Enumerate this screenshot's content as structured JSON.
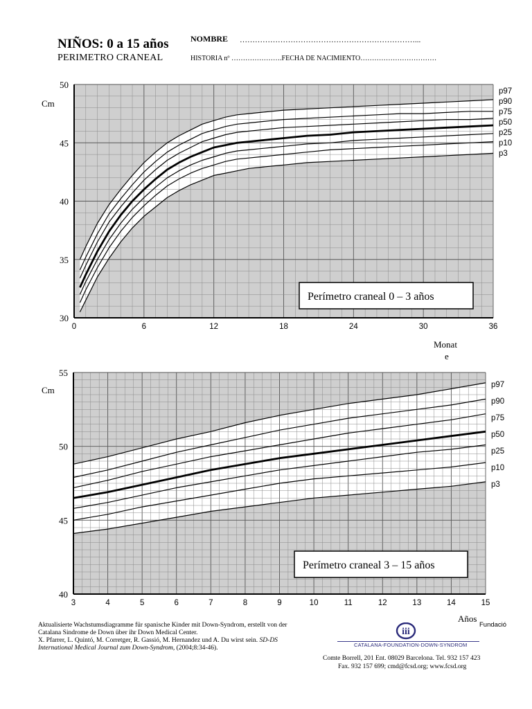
{
  "header": {
    "title": "NIÑOS: 0 a 15 años",
    "subtitle": "PERIMETRO CRANEAL",
    "nombre_label": "NOMBRE",
    "nombre_dots": "……………………………………………………………...",
    "historia_line": "HISTORIA nº ………………….FECHA DE NACIMIENTO……………………………"
  },
  "chart_data": [
    {
      "type": "line",
      "title": "Perímetro craneal  0 – 3 años",
      "ylabel": "Cm",
      "xlabel": "Monat\ne",
      "xlim": [
        0,
        36
      ],
      "ylim": [
        30,
        50
      ],
      "x_ticks": [
        0,
        6,
        12,
        18,
        24,
        30,
        36
      ],
      "y_ticks": [
        30,
        35,
        40,
        45,
        50
      ],
      "grid": true,
      "background": "#cfcfcf",
      "label_box": "Perímetro craneal  0 – 3 años",
      "x": [
        0.5,
        1,
        2,
        3,
        4,
        5,
        6,
        7,
        8,
        9,
        10,
        11,
        12,
        13,
        14,
        15,
        16,
        17,
        18,
        20,
        22,
        24,
        26,
        28,
        30,
        32,
        34,
        36
      ],
      "series": [
        {
          "name": "p97",
          "values": [
            35.0,
            36.1,
            38.1,
            39.7,
            41.0,
            42.2,
            43.3,
            44.2,
            45.0,
            45.6,
            46.1,
            46.6,
            46.9,
            47.2,
            47.4,
            47.5,
            47.6,
            47.7,
            47.8,
            47.9,
            48.0,
            48.1,
            48.2,
            48.3,
            48.4,
            48.5,
            48.6,
            48.7
          ]
        },
        {
          "name": "p90",
          "values": [
            34.1,
            35.2,
            37.2,
            38.9,
            40.2,
            41.4,
            42.5,
            43.4,
            44.2,
            44.8,
            45.3,
            45.8,
            46.1,
            46.4,
            46.6,
            46.7,
            46.8,
            46.9,
            47.0,
            47.1,
            47.2,
            47.3,
            47.4,
            47.5,
            47.5,
            47.6,
            47.7,
            47.7
          ]
        },
        {
          "name": "p75",
          "values": [
            33.4,
            34.5,
            36.5,
            38.2,
            39.5,
            40.7,
            41.8,
            42.7,
            43.5,
            44.1,
            44.6,
            45.1,
            45.4,
            45.7,
            45.9,
            46.0,
            46.1,
            46.2,
            46.3,
            46.4,
            46.5,
            46.6,
            46.7,
            46.8,
            46.9,
            47.0,
            47.0,
            47.1
          ]
        },
        {
          "name": "p50",
          "values": [
            32.6,
            33.7,
            35.7,
            37.4,
            38.8,
            40.0,
            41.0,
            41.9,
            42.7,
            43.3,
            43.8,
            44.2,
            44.6,
            44.8,
            45.0,
            45.1,
            45.2,
            45.3,
            45.4,
            45.6,
            45.7,
            45.9,
            46.0,
            46.1,
            46.2,
            46.3,
            46.4,
            46.5
          ]
        },
        {
          "name": "p25",
          "values": [
            32.0,
            33.1,
            35.0,
            36.7,
            38.1,
            39.3,
            40.3,
            41.2,
            42.0,
            42.6,
            43.1,
            43.5,
            43.8,
            44.1,
            44.3,
            44.4,
            44.5,
            44.6,
            44.7,
            44.9,
            45.0,
            45.2,
            45.3,
            45.4,
            45.5,
            45.6,
            45.7,
            45.8
          ]
        },
        {
          "name": "p10",
          "values": [
            31.3,
            32.4,
            34.3,
            36.0,
            37.4,
            38.6,
            39.6,
            40.5,
            41.3,
            41.9,
            42.4,
            42.8,
            43.1,
            43.4,
            43.6,
            43.7,
            43.8,
            43.9,
            44.0,
            44.2,
            44.4,
            44.5,
            44.6,
            44.7,
            44.8,
            44.9,
            45.0,
            45.1
          ]
        },
        {
          "name": "p3",
          "values": [
            30.5,
            31.5,
            33.5,
            35.1,
            36.5,
            37.7,
            38.7,
            39.5,
            40.3,
            40.9,
            41.4,
            41.8,
            42.2,
            42.4,
            42.6,
            42.8,
            42.9,
            43.0,
            43.1,
            43.3,
            43.4,
            43.5,
            43.6,
            43.7,
            43.8,
            43.9,
            44.0,
            44.1
          ]
        }
      ]
    },
    {
      "type": "line",
      "title": "Perímetro craneal  3 – 15 años",
      "ylabel": "Cm",
      "xlabel": "Años",
      "xlim": [
        3,
        15
      ],
      "ylim": [
        40,
        55
      ],
      "x_ticks": [
        3,
        4,
        5,
        6,
        7,
        8,
        9,
        10,
        11,
        12,
        13,
        14,
        15
      ],
      "y_ticks": [
        40,
        45,
        50,
        55
      ],
      "grid": true,
      "background": "#cfcfcf",
      "label_box": "Perímetro craneal  3 – 15 años",
      "x": [
        3,
        4,
        5,
        6,
        7,
        8,
        9,
        10,
        11,
        12,
        13,
        14,
        15
      ],
      "series": [
        {
          "name": "p97",
          "values": [
            48.8,
            49.3,
            49.9,
            50.5,
            51.0,
            51.6,
            52.1,
            52.5,
            52.9,
            53.2,
            53.5,
            53.9,
            54.3
          ]
        },
        {
          "name": "p90",
          "values": [
            47.9,
            48.4,
            49.0,
            49.6,
            50.1,
            50.6,
            51.1,
            51.5,
            51.9,
            52.2,
            52.5,
            52.8,
            53.2
          ]
        },
        {
          "name": "p75",
          "values": [
            47.2,
            47.7,
            48.3,
            48.8,
            49.3,
            49.7,
            50.1,
            50.5,
            50.9,
            51.2,
            51.5,
            51.8,
            52.2
          ]
        },
        {
          "name": "p50",
          "values": [
            46.5,
            46.9,
            47.4,
            47.9,
            48.4,
            48.8,
            49.2,
            49.5,
            49.8,
            50.1,
            50.4,
            50.7,
            51.0
          ]
        },
        {
          "name": "p25",
          "values": [
            45.8,
            46.2,
            46.7,
            47.2,
            47.6,
            48.0,
            48.4,
            48.7,
            49.0,
            49.3,
            49.6,
            49.8,
            50.1
          ]
        },
        {
          "name": "p10",
          "values": [
            45.0,
            45.4,
            45.9,
            46.3,
            46.7,
            47.1,
            47.5,
            47.8,
            48.0,
            48.2,
            48.4,
            48.6,
            48.9
          ]
        },
        {
          "name": "p3",
          "values": [
            44.1,
            44.4,
            44.8,
            45.2,
            45.6,
            45.9,
            46.2,
            46.5,
            46.7,
            46.9,
            47.1,
            47.3,
            47.6
          ]
        }
      ]
    }
  ],
  "footnote": {
    "line1": "Aktualisierte Wachstumsdiagramme für spanische Kinder mit Down-Syndrom, erstellt von der",
    "line2": "Catalana Sindrome de Down über ihr Down Medical Center.",
    "line3": "X. Pfarrer, L. Quintó, M. Corretger, R. Gassió, M. Hernandez und A. Du wirst sein.",
    "line3_italic": "SD-DS",
    "line4_italic": "International Medical Journal zum Down-Syndrom,",
    "line4": "(2004;8:34-46)."
  },
  "foundation": {
    "fundacio": "Fundació",
    "name": "CATALANA-FOUNDATION-DOWN-SYNDROM",
    "logo_text": "iii",
    "address1": "Comte Borrell, 201 Ent. 08029 Barcelona. Tel. 932 157 423",
    "address2": "Fax. 932 157 699; cmd@fcsd.org; www.fcsd.org",
    "logo_color": "#2a2a7a"
  }
}
